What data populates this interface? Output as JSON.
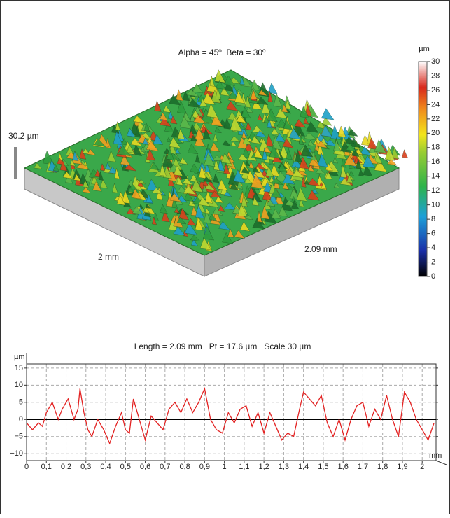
{
  "surface": {
    "title": "Alpha = 45º  Beta = 30º",
    "z_label": "30.2 µm",
    "x_label": "2 mm",
    "y_label": "2.09 mm",
    "colorbar": {
      "unit": "µm",
      "lim": [
        0,
        30
      ],
      "ticks": [
        0,
        2,
        4,
        6,
        8,
        10,
        12,
        14,
        16,
        18,
        20,
        22,
        24,
        26,
        28,
        30
      ]
    }
  },
  "chart_data": {
    "type": "line",
    "title": "Length = 2.09 mm   Pt = 17.6 µm   Scale 30 µm",
    "y_unit": "µm",
    "x_unit": "mm",
    "x": [
      0,
      0.03,
      0.06,
      0.08,
      0.1,
      0.13,
      0.16,
      0.18,
      0.21,
      0.24,
      0.26,
      0.27,
      0.29,
      0.31,
      0.33,
      0.36,
      0.39,
      0.42,
      0.45,
      0.48,
      0.5,
      0.52,
      0.54,
      0.57,
      0.6,
      0.63,
      0.66,
      0.69,
      0.72,
      0.75,
      0.78,
      0.81,
      0.84,
      0.87,
      0.9,
      0.93,
      0.96,
      0.99,
      1.02,
      1.05,
      1.08,
      1.11,
      1.14,
      1.17,
      1.2,
      1.23,
      1.26,
      1.29,
      1.32,
      1.35,
      1.38,
      1.4,
      1.43,
      1.46,
      1.49,
      1.52,
      1.55,
      1.58,
      1.61,
      1.64,
      1.67,
      1.7,
      1.73,
      1.76,
      1.79,
      1.82,
      1.85,
      1.88,
      1.91,
      1.94,
      1.97,
      2.0,
      2.03,
      2.06
    ],
    "series": [
      {
        "color": "#e32222",
        "values": [
          -1,
          -3,
          -1,
          -2,
          2,
          5,
          0,
          3,
          6,
          0,
          3,
          9,
          2,
          -3,
          -5,
          0,
          -3,
          -7,
          -2,
          2,
          -3,
          -4,
          6,
          0,
          -6,
          1,
          -1,
          -3,
          3,
          5,
          2,
          6,
          2,
          5,
          9,
          0,
          -3,
          -4,
          2,
          -1,
          3,
          4,
          -2,
          2,
          -4,
          2,
          -2,
          -6,
          -4,
          -5,
          3,
          8,
          6,
          4,
          7,
          -1,
          -5,
          0,
          -6,
          0,
          4,
          5,
          -2,
          3,
          0,
          7,
          0,
          -5,
          8,
          5,
          0,
          -3,
          -6,
          -1
        ]
      }
    ],
    "xlim": [
      0,
      2.07
    ],
    "ylim": [
      -12,
      16.2
    ],
    "xticks": [
      0,
      {
        "value": 0.1,
        "label": "0,1"
      },
      {
        "value": 0.2,
        "label": "0,2"
      },
      {
        "value": 0.3,
        "label": "0,3"
      },
      {
        "value": 0.4,
        "label": "0,4"
      },
      {
        "value": 0.5,
        "label": "0,5"
      },
      {
        "value": 0.6,
        "label": "0,6"
      },
      {
        "value": 0.7,
        "label": "0,7"
      },
      {
        "value": 0.8,
        "label": "0,8"
      },
      {
        "value": 0.9,
        "label": "0,9"
      },
      1,
      {
        "value": 1.1,
        "label": "1,1"
      },
      {
        "value": 1.2,
        "label": "1,2"
      },
      {
        "value": 1.3,
        "label": "1,3"
      },
      {
        "value": 1.4,
        "label": "1,4"
      },
      {
        "value": 1.5,
        "label": "1,5"
      },
      {
        "value": 1.6,
        "label": "1,6"
      },
      {
        "value": 1.7,
        "label": "1,7"
      },
      {
        "value": 1.8,
        "label": "1,8"
      },
      {
        "value": 1.9,
        "label": "1,9"
      },
      2
    ],
    "yticks": [
      {
        "value": -10,
        "label": "−10"
      },
      {
        "value": -5,
        "label": "−5"
      },
      0,
      5,
      10,
      15
    ],
    "grid": true
  }
}
